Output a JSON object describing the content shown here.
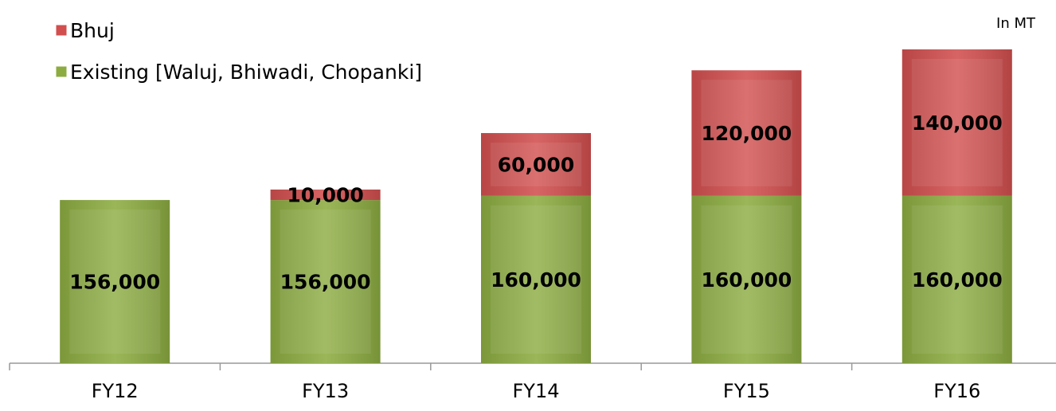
{
  "chart_data": {
    "type": "stacked_bar",
    "annotation": "In MT",
    "categories": [
      "FY12",
      "FY13",
      "FY14",
      "FY15",
      "FY16"
    ],
    "series": [
      {
        "name": "Existing [Waluj, Bhiwadi, Chopanki]",
        "color": "#8cac41",
        "values": [
          156000,
          156000,
          160000,
          160000,
          160000
        ],
        "value_labels": [
          "156,000",
          "156,000",
          "160,000",
          "160,000",
          "160,000"
        ]
      },
      {
        "name": "Bhuj",
        "color": "#d24f4f",
        "values": [
          null,
          10000,
          60000,
          120000,
          140000
        ],
        "value_labels": [
          null,
          "10,000",
          "60,000",
          "120,000",
          "140,000"
        ]
      }
    ]
  }
}
